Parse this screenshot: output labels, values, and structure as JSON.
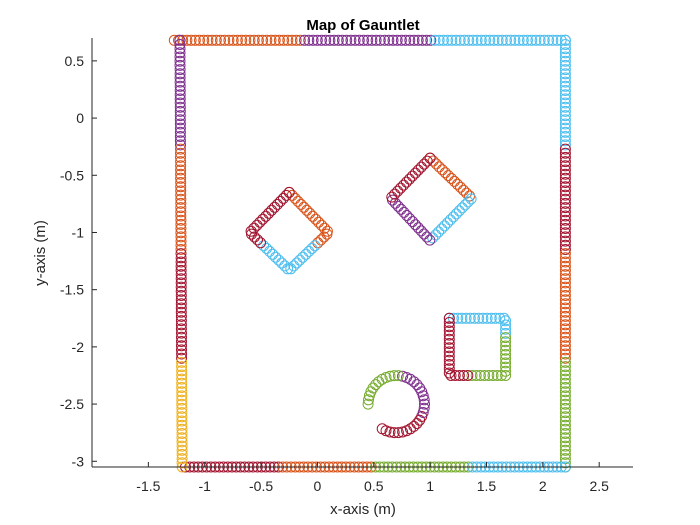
{
  "chart_data": {
    "type": "scatter",
    "title": "Map of Gauntlet",
    "xlabel": "x-axis (m)",
    "ylabel": "y-axis (m)",
    "xlim": [
      -2.0,
      2.8
    ],
    "ylim": [
      -3.05,
      0.7
    ],
    "x_ticks": [
      -1.5,
      -1,
      -0.5,
      0,
      0.5,
      1,
      1.5,
      2,
      2.5
    ],
    "x_tick_labels": [
      "-1.5",
      "-1",
      "-0.5",
      "0",
      "0.5",
      "1",
      "1.5",
      "2",
      "2.5"
    ],
    "y_ticks": [
      0.5,
      0,
      -0.5,
      -1,
      -1.5,
      -2,
      -2.5,
      -3
    ],
    "y_tick_labels": [
      "0.5",
      "0",
      "-0.5",
      "-1",
      "-1.5",
      "-2",
      "-2.5",
      "-3"
    ],
    "grid": false,
    "legend": "none",
    "marker": "open-circle",
    "palette": [
      "#0072BD",
      "#D95319",
      "#EDB120",
      "#7E2F8E",
      "#77AC30",
      "#4DBEEE",
      "#A2142F"
    ],
    "series": [
      {
        "shape": "polyline",
        "points": [
          [
            -1.27,
            0.68
          ],
          [
            2.2,
            0.68
          ]
        ],
        "colors": [
          "#D95319",
          "#7E2F8E",
          "#4DBEEE"
        ]
      },
      {
        "shape": "polyline",
        "points": [
          [
            2.2,
            0.68
          ],
          [
            2.2,
            -3.05
          ]
        ],
        "colors": [
          "#4DBEEE",
          "#A2142F",
          "#D95319",
          "#77AC30"
        ]
      },
      {
        "shape": "polyline",
        "points": [
          [
            -1.17,
            -3.05
          ],
          [
            2.2,
            -3.05
          ]
        ],
        "colors": [
          "#A2142F",
          "#D95319",
          "#77AC30",
          "#4DBEEE"
        ]
      },
      {
        "shape": "polyline",
        "points": [
          [
            -1.22,
            0.68
          ],
          [
            -1.2,
            -3.05
          ]
        ],
        "colors": [
          "#7E2F8E",
          "#D95319",
          "#A2142F",
          "#EDB120"
        ]
      },
      {
        "shape": "polyline",
        "points": [
          [
            -0.25,
            -0.65
          ],
          [
            0.1,
            -1.0
          ],
          [
            -0.25,
            -1.33
          ],
          [
            -0.6,
            -1.0
          ],
          [
            -0.25,
            -0.65
          ]
        ],
        "colors": [
          "#D95319",
          "#4DBEEE",
          "#A2142F"
        ]
      },
      {
        "shape": "polyline",
        "points": [
          [
            1.0,
            -0.35
          ],
          [
            1.37,
            -0.7
          ],
          [
            1.0,
            -1.07
          ],
          [
            0.65,
            -0.7
          ],
          [
            1.0,
            -0.35
          ]
        ],
        "colors": [
          "#D95319",
          "#4DBEEE",
          "#7E2F8E",
          "#A2142F"
        ]
      },
      {
        "shape": "polyline",
        "points": [
          [
            1.17,
            -1.75
          ],
          [
            1.67,
            -1.75
          ],
          [
            1.67,
            -2.25
          ],
          [
            1.17,
            -2.25
          ],
          [
            1.17,
            -1.75
          ]
        ],
        "colors": [
          "#4DBEEE",
          "#77AC30",
          "#A2142F"
        ]
      },
      {
        "shape": "arc",
        "center": [
          0.7,
          -2.5
        ],
        "radius": 0.25,
        "start_deg": 240,
        "sweep_deg": 300,
        "colors": [
          "#A2142F",
          "#7E2F8E",
          "#77AC30"
        ]
      }
    ]
  }
}
